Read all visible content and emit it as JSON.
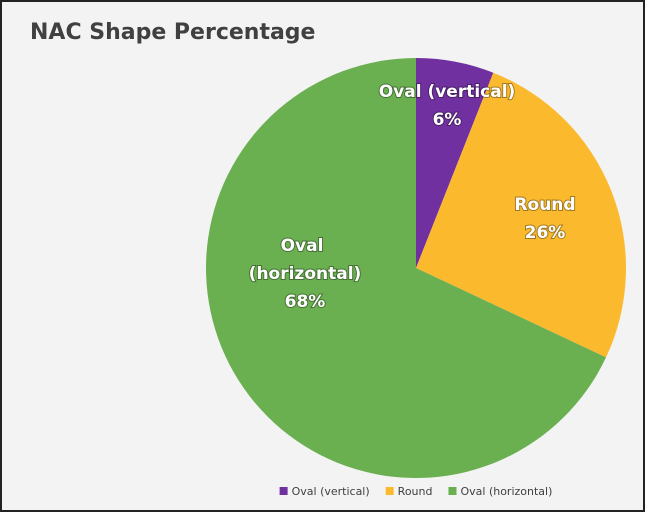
{
  "chart_data": {
    "type": "pie",
    "title": "NAC Shape Percentage",
    "categories": [
      "Oval (vertical)",
      "Round",
      "Oval (horizontal)"
    ],
    "values": [
      6,
      26,
      68
    ],
    "value_labels": [
      "6%",
      "26%",
      "68%"
    ],
    "colors": [
      "#7030a0",
      "#fbba2e",
      "#6aaf50"
    ],
    "legend": "bottom"
  }
}
